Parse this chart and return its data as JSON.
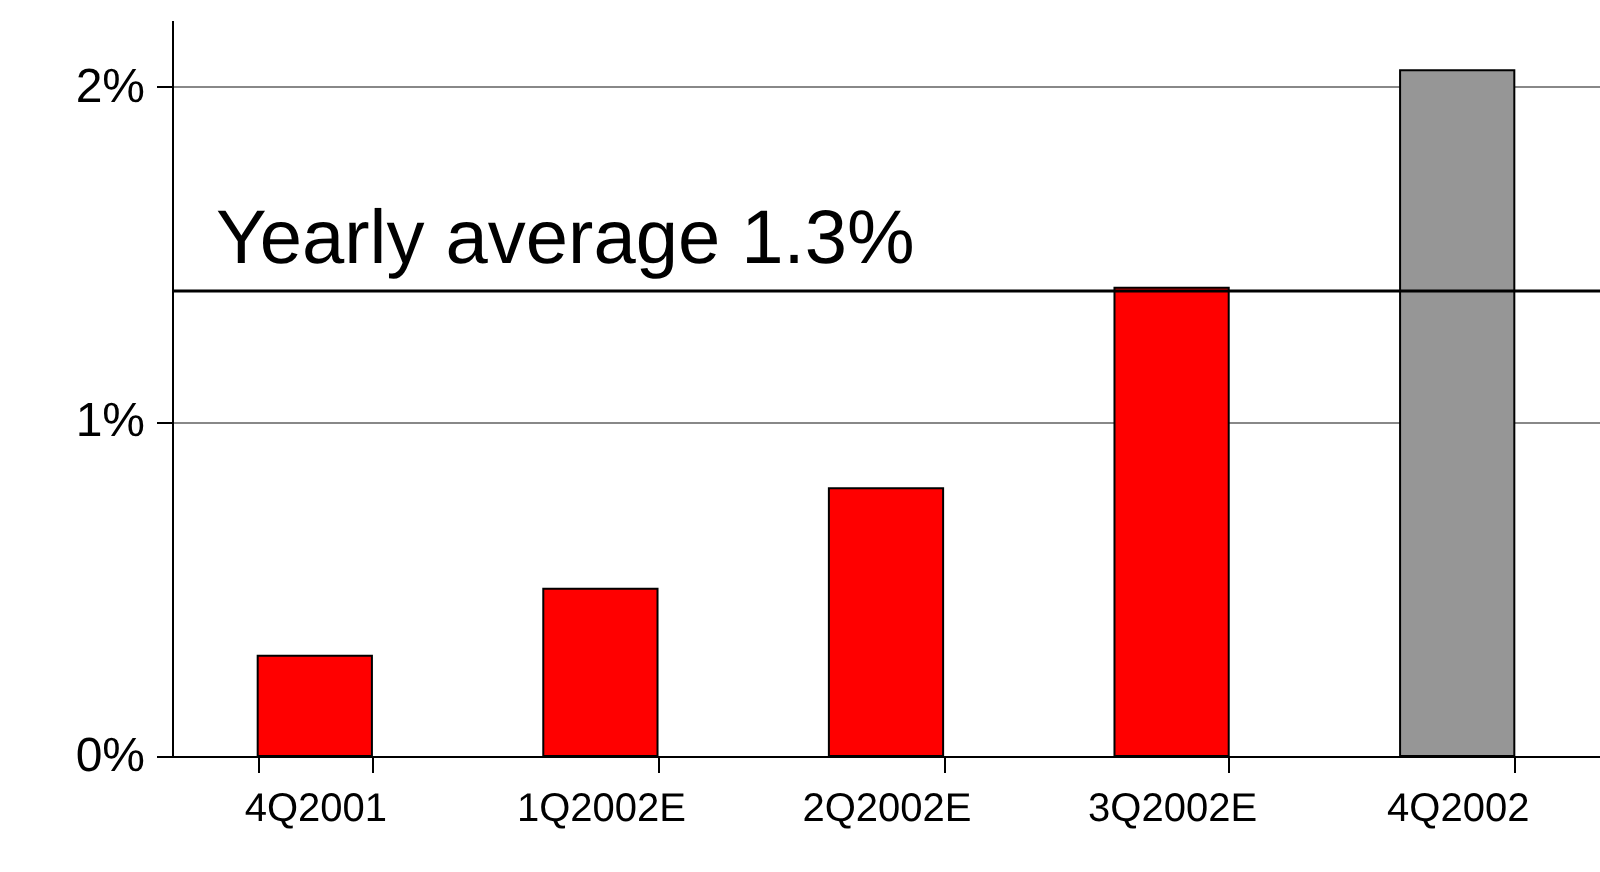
{
  "chart_data": {
    "type": "bar",
    "categories": [
      "4Q2001",
      "1Q2002E",
      "2Q2002E",
      "3Q2002E",
      "4Q2002"
    ],
    "values": [
      0.3,
      0.5,
      0.8,
      1.4,
      2.05
    ],
    "colors": [
      "#ff0000",
      "#ff0000",
      "#ff0000",
      "#ff0000",
      "#969696"
    ],
    "ylim": [
      0,
      2.2
    ],
    "yticks": [
      {
        "value": 0,
        "label": "0%"
      },
      {
        "value": 1,
        "label": "1%"
      },
      {
        "value": 2,
        "label": "2%"
      }
    ],
    "grid": "y",
    "ref_lines": [
      {
        "axis": "y",
        "value": 1.39,
        "label": "Yearly average 1.3%",
        "color": "#000000"
      }
    ]
  }
}
